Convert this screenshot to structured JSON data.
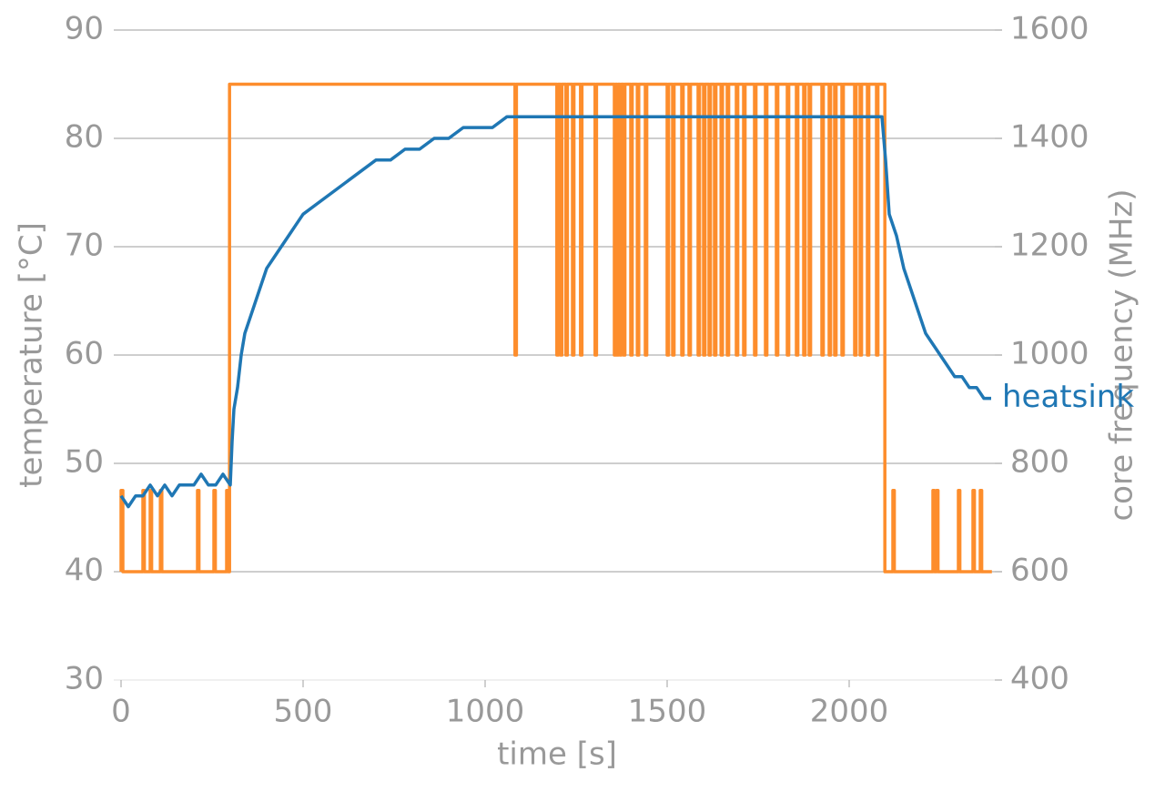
{
  "chart_data": {
    "type": "line",
    "xlabel": "time [s]",
    "ylabel": "temperature [°C]",
    "y2label": "core frequency (MHz)",
    "xlim": [
      0,
      2420
    ],
    "xticks": [
      0,
      500,
      1000,
      1500,
      2000
    ],
    "ylim": [
      30,
      90
    ],
    "yticks": [
      30,
      40,
      50,
      60,
      70,
      80,
      90
    ],
    "y2lim": [
      400,
      1600
    ],
    "y2ticks": [
      400,
      600,
      800,
      1000,
      1200,
      1400,
      1600
    ],
    "grid": true,
    "series": [
      {
        "axis": "y2",
        "color": "#fd8d2c",
        "x": [
          0,
          0,
          5,
          5,
          60,
          60,
          64,
          64,
          80,
          80,
          84,
          84,
          108,
          108,
          112,
          112,
          210,
          210,
          214,
          214,
          255,
          255,
          259,
          259,
          290,
          290,
          294,
          294,
          298,
          298,
          1082,
          1082,
          1086,
          1086,
          1197,
          1197,
          1201,
          1201,
          1207,
          1207,
          1211,
          1211,
          1222,
          1222,
          1226,
          1226,
          1240,
          1240,
          1244,
          1244,
          1262,
          1262,
          1266,
          1266,
          1302,
          1302,
          1306,
          1306,
          1355,
          1355,
          1359,
          1359,
          1362,
          1362,
          1366,
          1366,
          1370,
          1370,
          1374,
          1374,
          1380,
          1380,
          1384,
          1384,
          1400,
          1400,
          1404,
          1404,
          1418,
          1418,
          1422,
          1422,
          1440,
          1440,
          1444,
          1444,
          1500,
          1500,
          1504,
          1504,
          1515,
          1515,
          1519,
          1519,
          1540,
          1540,
          1544,
          1544,
          1560,
          1560,
          1564,
          1564,
          1585,
          1585,
          1589,
          1589,
          1600,
          1600,
          1604,
          1604,
          1615,
          1615,
          1619,
          1619,
          1630,
          1630,
          1634,
          1634,
          1648,
          1648,
          1652,
          1652,
          1665,
          1665,
          1669,
          1669,
          1690,
          1690,
          1694,
          1694,
          1710,
          1710,
          1714,
          1714,
          1740,
          1740,
          1744,
          1744,
          1770,
          1770,
          1774,
          1774,
          1800,
          1800,
          1804,
          1804,
          1830,
          1830,
          1834,
          1834,
          1855,
          1855,
          1859,
          1859,
          1875,
          1875,
          1879,
          1879,
          1890,
          1890,
          1894,
          1894,
          1925,
          1925,
          1929,
          1929,
          1945,
          1945,
          1949,
          1949,
          1960,
          1960,
          1964,
          1964,
          1980,
          1980,
          1984,
          1984,
          2015,
          2015,
          2019,
          2019,
          2030,
          2030,
          2034,
          2034,
          2050,
          2050,
          2054,
          2054,
          2075,
          2075,
          2079,
          2079,
          2098,
          2098,
          2120,
          2120,
          2124,
          2124,
          2230,
          2230,
          2234,
          2234,
          2240,
          2240,
          2244,
          2244,
          2300,
          2300,
          2304,
          2304,
          2340,
          2340,
          2344,
          2344,
          2360,
          2360,
          2364,
          2364,
          2392
        ],
        "values": [
          600,
          750,
          750,
          600,
          600,
          750,
          750,
          600,
          600,
          750,
          750,
          600,
          600,
          750,
          750,
          600,
          600,
          750,
          750,
          600,
          600,
          750,
          750,
          600,
          600,
          750,
          750,
          600,
          600,
          1500,
          1500,
          1000,
          1000,
          1500,
          1500,
          1000,
          1000,
          1500,
          1500,
          1000,
          1000,
          1500,
          1500,
          1000,
          1000,
          1500,
          1500,
          1000,
          1000,
          1500,
          1500,
          1000,
          1000,
          1500,
          1500,
          1000,
          1000,
          1500,
          1500,
          1000,
          1000,
          1500,
          1500,
          1000,
          1000,
          1500,
          1500,
          1000,
          1000,
          1500,
          1500,
          1000,
          1000,
          1500,
          1500,
          1000,
          1000,
          1500,
          1500,
          1000,
          1000,
          1500,
          1500,
          1000,
          1000,
          1500,
          1500,
          1000,
          1000,
          1500,
          1500,
          1000,
          1000,
          1500,
          1500,
          1000,
          1000,
          1500,
          1500,
          1000,
          1000,
          1500,
          1500,
          1000,
          1000,
          1500,
          1500,
          1000,
          1000,
          1500,
          1500,
          1000,
          1000,
          1500,
          1500,
          1000,
          1000,
          1500,
          1500,
          1000,
          1000,
          1500,
          1500,
          1000,
          1000,
          1500,
          1500,
          1000,
          1000,
          1500,
          1500,
          1000,
          1000,
          1500,
          1500,
          1000,
          1000,
          1500,
          1500,
          1000,
          1000,
          1500,
          1500,
          1000,
          1000,
          1500,
          1500,
          1000,
          1000,
          1500,
          1500,
          1000,
          1000,
          1500,
          1500,
          1000,
          1000,
          1500,
          1500,
          1000,
          1000,
          1500,
          1500,
          1000,
          1000,
          1500,
          1500,
          1000,
          1000,
          1500,
          1500,
          1000,
          1000,
          1500,
          1500,
          1000,
          1000,
          1500,
          1500,
          1000,
          1000,
          1500,
          1500,
          1000,
          1000,
          1500,
          1500,
          1000,
          1000,
          1500,
          1500,
          1000,
          1000,
          1500,
          1500,
          600,
          600,
          750,
          750,
          600,
          600,
          750,
          750,
          600,
          600,
          750,
          750,
          600,
          600,
          750,
          750,
          600,
          600,
          750,
          750,
          600,
          600,
          750,
          750,
          600,
          600
        ]
      },
      {
        "name": "heatsink",
        "color": "#1f77b4",
        "x": [
          0,
          20,
          40,
          60,
          80,
          100,
          120,
          140,
          160,
          180,
          200,
          220,
          240,
          260,
          280,
          300,
          305,
          310,
          320,
          330,
          340,
          360,
          380,
          400,
          420,
          440,
          460,
          480,
          500,
          540,
          580,
          620,
          660,
          700,
          740,
          780,
          820,
          860,
          900,
          940,
          980,
          1020,
          1060,
          1100,
          1150,
          1200,
          1250,
          1300,
          1350,
          1400,
          1450,
          1500,
          1550,
          1600,
          1650,
          1700,
          1750,
          1800,
          1850,
          1900,
          1950,
          2000,
          2050,
          2090,
          2100,
          2110,
          2130,
          2150,
          2170,
          2190,
          2210,
          2230,
          2250,
          2270,
          2290,
          2310,
          2330,
          2350,
          2370,
          2390
        ],
        "values": [
          47,
          46,
          47,
          47,
          48,
          47,
          48,
          47,
          48,
          48,
          48,
          49,
          48,
          48,
          49,
          48,
          52,
          55,
          57,
          60,
          62,
          64,
          66,
          68,
          69,
          70,
          71,
          72,
          73,
          74,
          75,
          76,
          77,
          78,
          78,
          79,
          79,
          80,
          80,
          81,
          81,
          81,
          82,
          82,
          82,
          82,
          82,
          82,
          82,
          82,
          82,
          82,
          82,
          82,
          82,
          82,
          82,
          82,
          82,
          82,
          82,
          82,
          82,
          82,
          78,
          73,
          71,
          68,
          66,
          64,
          62,
          61,
          60,
          59,
          58,
          58,
          57,
          57,
          56,
          56
        ]
      }
    ]
  }
}
